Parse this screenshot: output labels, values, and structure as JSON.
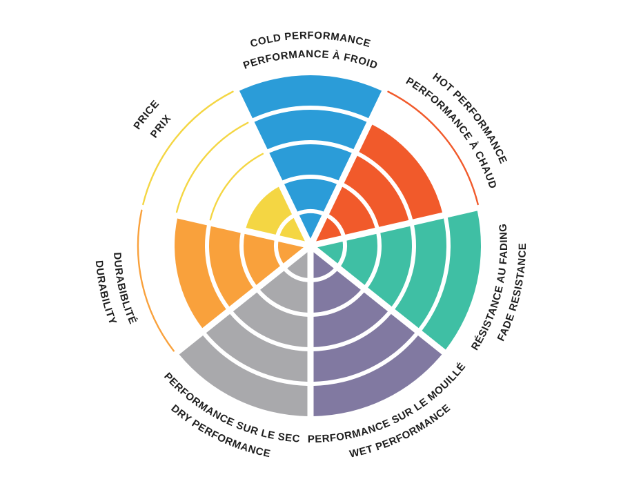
{
  "chart_data": {
    "type": "radial-rating-wheel",
    "description": "Seven-sector performance rating wheel; each sector filled on a 5-ring scale, unfilled rings marked by thin colored outline arcs",
    "max_rating": 5,
    "ring_count": 5,
    "background": "#FFFFFF",
    "label_color": "#1E1E1E",
    "categories": [
      {
        "key": "cold-performance",
        "label_line1": "COLD PERFORMANCE",
        "label_line2": "PERFORMANCE À FROID",
        "value": 5,
        "color": "#2B9CD8",
        "flipped": false
      },
      {
        "key": "hot-performance",
        "label_line1": "HOT PERFORMANCE",
        "label_line2": "PERFORMANCE À CHAUD",
        "value": 4,
        "color": "#F15A2B",
        "flipped": false
      },
      {
        "key": "fade-resistance",
        "label_line1": "RÉSISTANCE AU FADING",
        "label_line2": "FADE RESISTANCE",
        "value": 5,
        "color": "#3FBFA4",
        "flipped": true
      },
      {
        "key": "wet-performance",
        "label_line1": "PERFORMANCE SUR LE MOUILLÉ",
        "label_line2": "WET PERFORMANCE",
        "value": 5,
        "color": "#8179A1",
        "flipped": true
      },
      {
        "key": "dry-performance",
        "label_line1": "PERFORMANCE SUR LE SEC",
        "label_line2": "DRY PERFORMANCE",
        "value": 5,
        "color": "#A9A9AC",
        "flipped": true
      },
      {
        "key": "durability",
        "label_line1": "DURABIBLITÉ",
        "label_line2": "DURABILITY",
        "value": 4,
        "color": "#F9A13C",
        "flipped": true
      },
      {
        "key": "price",
        "label_line1": "PRICE",
        "label_line2": "PRIX",
        "value": 2,
        "color": "#F4D643",
        "flipped": false
      }
    ]
  }
}
